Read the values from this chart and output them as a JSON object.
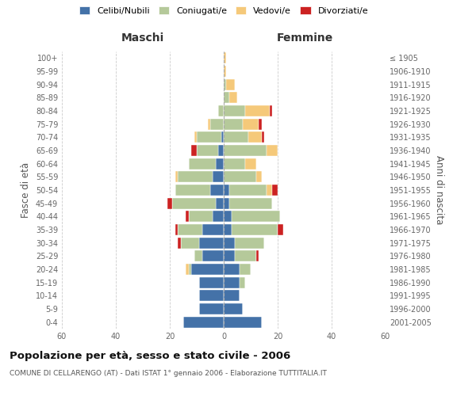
{
  "age_groups": [
    "0-4",
    "5-9",
    "10-14",
    "15-19",
    "20-24",
    "25-29",
    "30-34",
    "35-39",
    "40-44",
    "45-49",
    "50-54",
    "55-59",
    "60-64",
    "65-69",
    "70-74",
    "75-79",
    "80-84",
    "85-89",
    "90-94",
    "95-99",
    "100+"
  ],
  "birth_years": [
    "2001-2005",
    "1996-2000",
    "1991-1995",
    "1986-1990",
    "1981-1985",
    "1976-1980",
    "1971-1975",
    "1966-1970",
    "1961-1965",
    "1956-1960",
    "1951-1955",
    "1946-1950",
    "1941-1945",
    "1936-1940",
    "1931-1935",
    "1926-1930",
    "1921-1925",
    "1916-1920",
    "1911-1915",
    "1906-1910",
    "≤ 1905"
  ],
  "colors": {
    "celibi": "#4472a8",
    "coniugati": "#b5c99a",
    "vedovi": "#f5c97a",
    "divorziati": "#cc2222"
  },
  "maschi": {
    "celibi": [
      15,
      9,
      9,
      9,
      12,
      8,
      9,
      8,
      4,
      3,
      5,
      4,
      3,
      2,
      1,
      0,
      0,
      0,
      0,
      0,
      0
    ],
    "coniugati": [
      0,
      0,
      0,
      0,
      1,
      3,
      7,
      9,
      9,
      16,
      13,
      13,
      10,
      8,
      9,
      5,
      2,
      0,
      0,
      0,
      0
    ],
    "vedovi": [
      0,
      0,
      0,
      0,
      1,
      0,
      0,
      0,
      0,
      0,
      0,
      1,
      0,
      0,
      1,
      1,
      0,
      0,
      0,
      0,
      0
    ],
    "divorziati": [
      0,
      0,
      0,
      0,
      0,
      0,
      1,
      1,
      1,
      2,
      0,
      0,
      0,
      2,
      0,
      0,
      0,
      0,
      0,
      0,
      0
    ]
  },
  "femmine": {
    "celibi": [
      14,
      7,
      6,
      6,
      6,
      4,
      4,
      3,
      3,
      2,
      2,
      0,
      0,
      0,
      0,
      0,
      0,
      0,
      0,
      0,
      0
    ],
    "coniugati": [
      0,
      0,
      0,
      2,
      4,
      8,
      11,
      17,
      18,
      16,
      14,
      12,
      8,
      16,
      9,
      7,
      8,
      2,
      1,
      0,
      0
    ],
    "vedovi": [
      0,
      0,
      0,
      0,
      0,
      0,
      0,
      0,
      0,
      0,
      2,
      2,
      4,
      4,
      5,
      6,
      9,
      3,
      3,
      1,
      1
    ],
    "divorziati": [
      0,
      0,
      0,
      0,
      0,
      1,
      0,
      2,
      0,
      0,
      2,
      0,
      0,
      0,
      1,
      1,
      1,
      0,
      0,
      0,
      0
    ]
  },
  "xlim": 60,
  "title": "Popolazione per età, sesso e stato civile - 2006",
  "subtitle": "COMUNE DI CELLARENGO (AT) - Dati ISTAT 1° gennaio 2006 - Elaborazione TUTTITALIA.IT",
  "ylabel_left": "Fasce di età",
  "ylabel_right": "Anni di nascita",
  "legend_labels": [
    "Celibi/Nubili",
    "Coniugati/e",
    "Vedovi/e",
    "Divorziati/e"
  ],
  "maschi_label": "Maschi",
  "femmine_label": "Femmine",
  "background_color": "#ffffff",
  "grid_color": "#cccccc"
}
